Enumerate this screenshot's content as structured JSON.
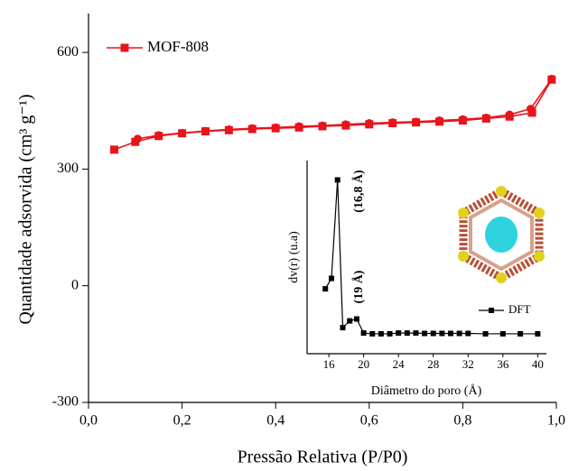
{
  "chart_data": [
    {
      "type": "line",
      "x_label": "Pressão Relativa (P/P0)",
      "y_label": "Quantidade adsorvida (cm³ g⁻¹)",
      "xlim": [
        0,
        1
      ],
      "ylim": [
        -300,
        700
      ],
      "xticks": [
        {
          "value": 0,
          "label": "0,0"
        },
        {
          "value": 0.2,
          "label": "0,2"
        },
        {
          "value": 0.4,
          "label": "0,4"
        },
        {
          "value": 0.6,
          "label": "0,6"
        },
        {
          "value": 0.8,
          "label": "0,8"
        },
        {
          "value": 1,
          "label": "1,0"
        }
      ],
      "yticks": [
        -300,
        0,
        300,
        600
      ],
      "legend": "upper left",
      "series": [
        {
          "name": "MOF-808",
          "color": "#e8141b",
          "marker": "square",
          "x": [
            0.055,
            0.1,
            0.15,
            0.2,
            0.25,
            0.3,
            0.35,
            0.4,
            0.45,
            0.5,
            0.55,
            0.6,
            0.65,
            0.7,
            0.75,
            0.8,
            0.85,
            0.9,
            0.948,
            0.99
          ],
          "values": [
            350,
            370,
            385,
            392,
            397,
            400,
            403,
            405,
            407,
            410,
            412,
            415,
            418,
            420,
            422,
            425,
            430,
            435,
            445,
            530
          ]
        },
        {
          "color": "#e8141b",
          "marker": "circle",
          "x": [
            0.99,
            0.945,
            0.9,
            0.85,
            0.8,
            0.75,
            0.7,
            0.65,
            0.6,
            0.55,
            0.5,
            0.45,
            0.4,
            0.35,
            0.3,
            0.25,
            0.2,
            0.15,
            0.105
          ],
          "values": [
            532,
            455,
            440,
            432,
            428,
            425,
            422,
            420,
            418,
            415,
            412,
            410,
            407,
            405,
            402,
            398,
            393,
            387,
            378
          ]
        }
      ]
    },
    {
      "type": "line",
      "x_label": "Diâmetro do poro (Å)",
      "y_label": "dv(r) (u.a)",
      "xlim": [
        13.5,
        41
      ],
      "ylim": [
        0,
        100
      ],
      "xticks": [
        16,
        20,
        24,
        28,
        32,
        36,
        40
      ],
      "legend": "lower right",
      "annotations": [
        "(16,8 Å)",
        "(19 Å)"
      ],
      "series": [
        {
          "name": "DFT",
          "color": "#000000",
          "marker": "square",
          "x": [
            15.6,
            16.3,
            17.0,
            17.6,
            18.4,
            19.2,
            20,
            21,
            22,
            23,
            24,
            25,
            26,
            27,
            28,
            29,
            30,
            31,
            32,
            34,
            36,
            38,
            40
          ],
          "values": [
            33.6,
            39,
            90,
            13.5,
            17,
            18,
            10.7,
            10.3,
            10.3,
            10.3,
            10.7,
            10.7,
            10.7,
            10.5,
            10.5,
            10.5,
            10.5,
            10.5,
            10.5,
            10.3,
            10.3,
            10.3,
            10.3
          ]
        }
      ]
    }
  ]
}
